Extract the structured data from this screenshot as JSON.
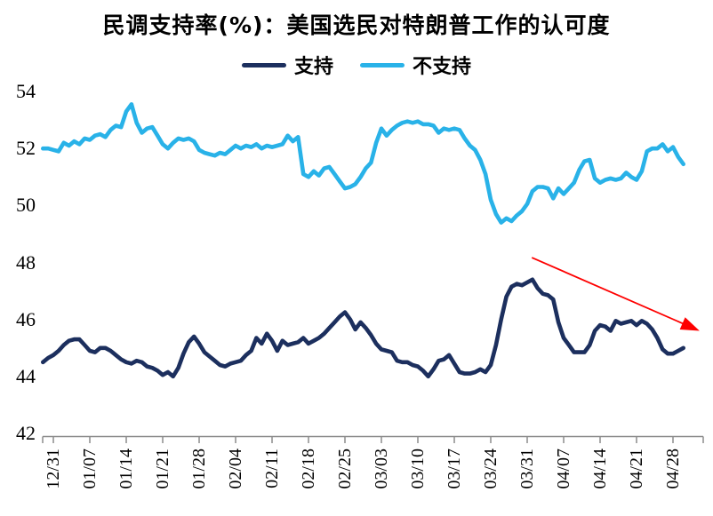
{
  "title": "民调支持率(%)：美国选民对特朗普工作的认可度",
  "legend": {
    "items": [
      {
        "label": "支持",
        "color": "#1C2F5E"
      },
      {
        "label": "不支持",
        "color": "#29B2E8"
      }
    ]
  },
  "colors": {
    "approve_line": "#1C2F5E",
    "disapprove_line": "#29B2E8",
    "arrow": "#FE0000",
    "axis": "#8C8C8C",
    "text": "#000000"
  },
  "chart_data": {
    "type": "line",
    "title": "民调支持率(%)：美国选民对特朗普工作的认可度",
    "xlabel": "",
    "ylabel": "",
    "grid": false,
    "legend_position": "top-center",
    "ylim": [
      42,
      54
    ],
    "y_ticks": [
      54,
      52,
      50,
      48,
      46,
      44,
      42
    ],
    "x_unit": "day",
    "x_start_label": "12/29",
    "first_tick_day": 2,
    "tick_interval_days": 7,
    "x_tick_labels": [
      "12/31",
      "01/07",
      "01/14",
      "01/21",
      "01/28",
      "02/04",
      "02/11",
      "02/18",
      "02/25",
      "03/03",
      "03/10",
      "03/17",
      "03/24",
      "03/31",
      "04/07",
      "04/14",
      "04/21",
      "04/28"
    ],
    "series": [
      {
        "name": "支持",
        "color": "#1C2F5E",
        "values": [
          44.5,
          44.65,
          44.75,
          44.9,
          45.1,
          45.25,
          45.3,
          45.3,
          45.1,
          44.9,
          44.85,
          45.0,
          45.0,
          44.9,
          44.75,
          44.6,
          44.5,
          44.45,
          44.55,
          44.5,
          44.35,
          44.3,
          44.2,
          44.05,
          44.15,
          44.0,
          44.3,
          44.8,
          45.2,
          45.4,
          45.15,
          44.85,
          44.7,
          44.55,
          44.4,
          44.35,
          44.45,
          44.5,
          44.55,
          44.75,
          44.9,
          45.35,
          45.15,
          45.5,
          45.25,
          44.9,
          45.25,
          45.1,
          45.15,
          45.2,
          45.35,
          45.15,
          45.25,
          45.35,
          45.5,
          45.7,
          45.9,
          46.1,
          46.25,
          46.0,
          45.65,
          45.9,
          45.7,
          45.45,
          45.15,
          44.95,
          44.9,
          44.85,
          44.55,
          44.5,
          44.5,
          44.4,
          44.35,
          44.2,
          44.0,
          44.25,
          44.55,
          44.6,
          44.75,
          44.45,
          44.15,
          44.1,
          44.1,
          44.15,
          44.25,
          44.15,
          44.4,
          45.1,
          46.0,
          46.8,
          47.15,
          47.25,
          47.2,
          47.3,
          47.4,
          47.1,
          46.9,
          46.85,
          46.7,
          45.9,
          45.35,
          45.1,
          44.85,
          44.85,
          44.85,
          45.1,
          45.6,
          45.8,
          45.75,
          45.6,
          45.95,
          45.85,
          45.9,
          45.95,
          45.8,
          45.95,
          45.85,
          45.65,
          45.35,
          44.95,
          44.8,
          44.8,
          44.9,
          45.0
        ]
      },
      {
        "name": "不支持",
        "color": "#29B2E8",
        "values": [
          52.0,
          52.0,
          51.95,
          51.9,
          52.2,
          52.1,
          52.25,
          52.15,
          52.35,
          52.3,
          52.45,
          52.5,
          52.4,
          52.65,
          52.8,
          52.75,
          53.3,
          53.55,
          52.9,
          52.55,
          52.7,
          52.75,
          52.45,
          52.15,
          52.0,
          52.2,
          52.35,
          52.3,
          52.35,
          52.25,
          51.95,
          51.85,
          51.8,
          51.75,
          51.85,
          51.8,
          51.95,
          52.1,
          52.0,
          52.1,
          52.05,
          52.15,
          52.0,
          52.1,
          52.05,
          52.1,
          52.15,
          52.45,
          52.25,
          52.4,
          51.1,
          51.0,
          51.2,
          51.05,
          51.3,
          51.35,
          51.1,
          50.85,
          50.6,
          50.65,
          50.75,
          51.0,
          51.3,
          51.5,
          52.2,
          52.7,
          52.45,
          52.65,
          52.8,
          52.9,
          52.95,
          52.9,
          52.95,
          52.85,
          52.85,
          52.8,
          52.55,
          52.7,
          52.65,
          52.7,
          52.65,
          52.35,
          52.1,
          51.95,
          51.6,
          51.1,
          50.2,
          49.7,
          49.4,
          49.55,
          49.45,
          49.65,
          49.8,
          50.05,
          50.5,
          50.65,
          50.65,
          50.6,
          50.25,
          50.6,
          50.4,
          50.6,
          50.8,
          51.25,
          51.55,
          51.6,
          50.95,
          50.8,
          50.9,
          50.95,
          50.9,
          50.95,
          51.15,
          51.0,
          50.9,
          51.2,
          51.9,
          52.0,
          52.0,
          52.15,
          51.9,
          52.05,
          51.7,
          51.45
        ]
      }
    ],
    "annotations": [
      {
        "type": "arrow",
        "color": "#FE0000",
        "from_day": 93.9,
        "from_value": 48.17,
        "to_day": 126.1,
        "to_value": 45.6
      }
    ]
  }
}
